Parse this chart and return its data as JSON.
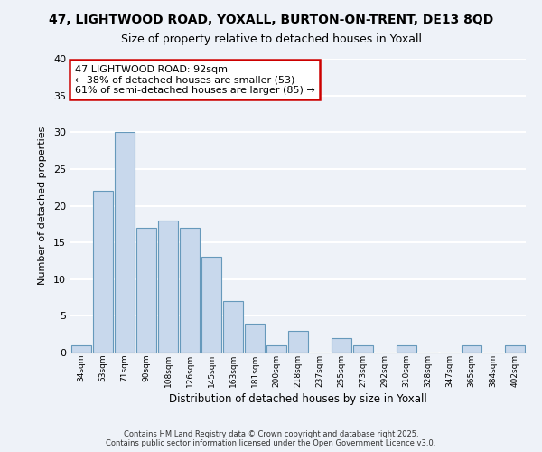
{
  "title_line1": "47, LIGHTWOOD ROAD, YOXALL, BURTON-ON-TRENT, DE13 8QD",
  "title_line2": "Size of property relative to detached houses in Yoxall",
  "xlabel": "Distribution of detached houses by size in Yoxall",
  "ylabel": "Number of detached properties",
  "bar_labels": [
    "34sqm",
    "53sqm",
    "71sqm",
    "90sqm",
    "108sqm",
    "126sqm",
    "145sqm",
    "163sqm",
    "181sqm",
    "200sqm",
    "218sqm",
    "237sqm",
    "255sqm",
    "273sqm",
    "292sqm",
    "310sqm",
    "328sqm",
    "347sqm",
    "365sqm",
    "384sqm",
    "402sqm"
  ],
  "bar_values": [
    1,
    22,
    30,
    17,
    18,
    17,
    13,
    7,
    4,
    1,
    3,
    0,
    2,
    1,
    0,
    1,
    0,
    0,
    1,
    0,
    1
  ],
  "bar_color": "#c8d8ec",
  "bar_edge_color": "#6699bb",
  "ylim": [
    0,
    40
  ],
  "yticks": [
    0,
    5,
    10,
    15,
    20,
    25,
    30,
    35,
    40
  ],
  "annotation_title": "47 LIGHTWOOD ROAD: 92sqm",
  "annotation_line2": "← 38% of detached houses are smaller (53)",
  "annotation_line3": "61% of semi-detached houses are larger (85) →",
  "annotation_box_color": "#ffffff",
  "annotation_box_edge": "#cc0000",
  "footer_line1": "Contains HM Land Registry data © Crown copyright and database right 2025.",
  "footer_line2": "Contains public sector information licensed under the Open Government Licence v3.0.",
  "bg_color": "#eef2f8",
  "grid_color": "#ffffff"
}
